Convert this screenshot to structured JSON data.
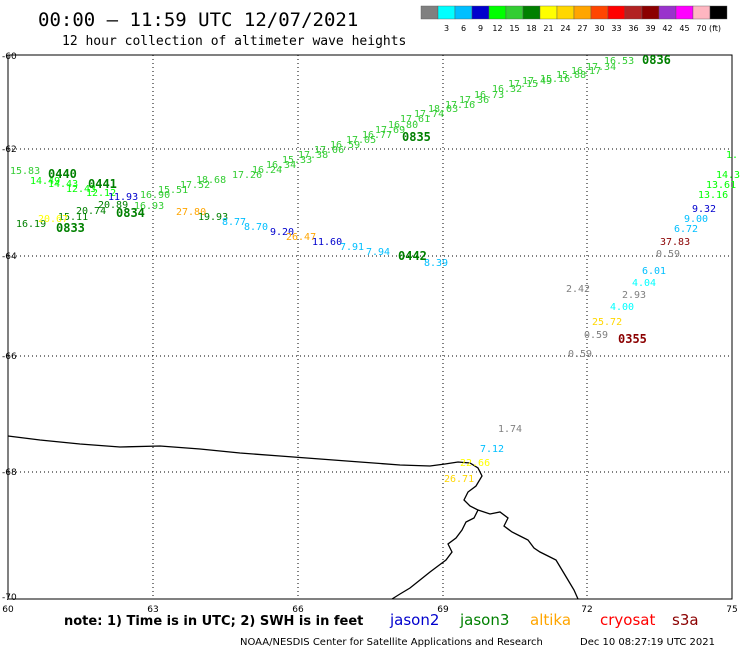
{
  "header": {
    "title": "00:00 – 11:59 UTC 12/07/2021",
    "subtitle": "12 hour collection of altimeter wave heights"
  },
  "legend": {
    "unit": "(ft)",
    "swatches": [
      {
        "label": "",
        "color": "#808080"
      },
      {
        "label": "3",
        "color": "#00ffff"
      },
      {
        "label": "6",
        "color": "#00bfff"
      },
      {
        "label": "9",
        "color": "#0000cd"
      },
      {
        "label": "12",
        "color": "#00ff00"
      },
      {
        "label": "15",
        "color": "#32cd32"
      },
      {
        "label": "18",
        "color": "#008000"
      },
      {
        "label": "21",
        "color": "#ffff00"
      },
      {
        "label": "24",
        "color": "#ffd700"
      },
      {
        "label": "27",
        "color": "#ffa500"
      },
      {
        "label": "30",
        "color": "#ff4500"
      },
      {
        "label": "33",
        "color": "#ff0000"
      },
      {
        "label": "36",
        "color": "#b22222"
      },
      {
        "label": "39",
        "color": "#8b0000"
      },
      {
        "label": "42",
        "color": "#9932cc"
      },
      {
        "label": "45",
        "color": "#ff00ff"
      },
      {
        "label": "70",
        "color": "#ffb6c1"
      },
      {
        "label": "",
        "color": "#000000"
      }
    ]
  },
  "axes": {
    "lon_labels": [
      "60",
      "63",
      "66",
      "69",
      "72",
      "75"
    ],
    "lat_labels": [
      "-60",
      "-62",
      "-64",
      "-66",
      "-68",
      "-70"
    ]
  },
  "pass_labels": [
    {
      "text": "0440",
      "color": "#008000"
    },
    {
      "text": "0441",
      "color": "#008000"
    },
    {
      "text": "0834",
      "color": "#008000"
    },
    {
      "text": "0833",
      "color": "#008000"
    },
    {
      "text": "0835",
      "color": "#008000"
    },
    {
      "text": "0836",
      "color": "#008000"
    },
    {
      "text": "0442",
      "color": "#008000"
    },
    {
      "text": "0355",
      "color": "#8b0000"
    }
  ],
  "observations": [
    {
      "text": "16.53",
      "color": "#32cd32"
    },
    {
      "text": "17.34",
      "color": "#32cd32"
    },
    {
      "text": "16.17",
      "color": "#32cd32"
    },
    {
      "text": "15.88",
      "color": "#32cd32"
    },
    {
      "text": "15.16",
      "color": "#32cd32"
    },
    {
      "text": "17.49",
      "color": "#32cd32"
    },
    {
      "text": "17.15",
      "color": "#32cd32"
    },
    {
      "text": "16.32",
      "color": "#32cd32"
    },
    {
      "text": "16.73",
      "color": "#32cd32"
    },
    {
      "text": "17.36",
      "color": "#32cd32"
    },
    {
      "text": "17.16",
      "color": "#32cd32"
    },
    {
      "text": "18.03",
      "color": "#32cd32"
    },
    {
      "text": "17.74",
      "color": "#32cd32"
    },
    {
      "text": "17.61",
      "color": "#32cd32"
    },
    {
      "text": "16.80",
      "color": "#32cd32"
    },
    {
      "text": "17.69",
      "color": "#32cd32"
    },
    {
      "text": "16.77",
      "color": "#32cd32"
    },
    {
      "text": "17.05",
      "color": "#32cd32"
    },
    {
      "text": "16.59",
      "color": "#32cd32"
    },
    {
      "text": "17.06",
      "color": "#32cd32"
    },
    {
      "text": "17.38",
      "color": "#32cd32"
    },
    {
      "text": "15.33",
      "color": "#32cd32"
    },
    {
      "text": "16.34",
      "color": "#32cd32"
    },
    {
      "text": "16.24",
      "color": "#32cd32"
    },
    {
      "text": "17.26",
      "color": "#32cd32"
    },
    {
      "text": "18.68",
      "color": "#32cd32"
    },
    {
      "text": "17.52",
      "color": "#32cd32"
    },
    {
      "text": "15.51",
      "color": "#32cd32"
    },
    {
      "text": "16.90",
      "color": "#32cd32"
    },
    {
      "text": "15.83",
      "color": "#32cd32"
    },
    {
      "text": "14.49",
      "color": "#00ff00"
    },
    {
      "text": "14.43",
      "color": "#00ff00"
    },
    {
      "text": "12.43",
      "color": "#00ff00"
    },
    {
      "text": "12.12",
      "color": "#00ff00"
    },
    {
      "text": "11.93",
      "color": "#0000cd"
    },
    {
      "text": "20.89",
      "color": "#008000"
    },
    {
      "text": "20.74",
      "color": "#008000"
    },
    {
      "text": "15.11",
      "color": "#008000"
    },
    {
      "text": "16.19",
      "color": "#008000"
    },
    {
      "text": "20.67",
      "color": "#ffff00"
    },
    {
      "text": "16.93",
      "color": "#32cd32"
    },
    {
      "text": "27.80",
      "color": "#ffa500"
    },
    {
      "text": "19.93",
      "color": "#008000"
    },
    {
      "text": "8.77",
      "color": "#00bfff"
    },
    {
      "text": "8.70",
      "color": "#00bfff"
    },
    {
      "text": "9.20",
      "color": "#0000cd"
    },
    {
      "text": "26.47",
      "color": "#ffa500"
    },
    {
      "text": "11.60",
      "color": "#0000cd"
    },
    {
      "text": "7.91",
      "color": "#00bfff"
    },
    {
      "text": "7.94",
      "color": "#00bfff"
    },
    {
      "text": "8.39",
      "color": "#00bfff"
    },
    {
      "text": "1.",
      "color": "#00ff00"
    },
    {
      "text": "14.3",
      "color": "#00ff00"
    },
    {
      "text": "13.61",
      "color": "#00ff00"
    },
    {
      "text": "13.16",
      "color": "#00ff00"
    },
    {
      "text": "9.32",
      "color": "#0000cd"
    },
    {
      "text": "9.00",
      "color": "#00bfff"
    },
    {
      "text": "6.72",
      "color": "#00bfff"
    },
    {
      "text": "37.83",
      "color": "#8b0000"
    },
    {
      "text": "0.59",
      "color": "#808080"
    },
    {
      "text": "6.01",
      "color": "#00bfff"
    },
    {
      "text": "4.04",
      "color": "#00ffff"
    },
    {
      "text": "2.42",
      "color": "#808080"
    },
    {
      "text": "2.93",
      "color": "#808080"
    },
    {
      "text": "4.00",
      "color": "#00ffff"
    },
    {
      "text": "25.72",
      "color": "#ffd700"
    },
    {
      "text": "0.59",
      "color": "#808080"
    },
    {
      "text": "0.59",
      "color": "#808080"
    },
    {
      "text": "1.74",
      "color": "#808080"
    },
    {
      "text": "7.12",
      "color": "#00bfff"
    },
    {
      "text": "22.66",
      "color": "#ffff00"
    },
    {
      "text": "26.71",
      "color": "#ffd700"
    }
  ],
  "footer": {
    "note": "note: 1) Time is in UTC; 2) SWH is in feet",
    "missions": [
      {
        "name": "jason2",
        "color": "#0000cd"
      },
      {
        "name": "jason3",
        "color": "#008000"
      },
      {
        "name": "altika",
        "color": "#ffa500"
      },
      {
        "name": "cryosat",
        "color": "#ff0000"
      },
      {
        "name": "s3a",
        "color": "#8b0000"
      }
    ],
    "credit": "NOAA/NESDIS Center for Satellite Applications and Research",
    "timestamp": "Dec 10 08:27:19 UTC 2021"
  }
}
